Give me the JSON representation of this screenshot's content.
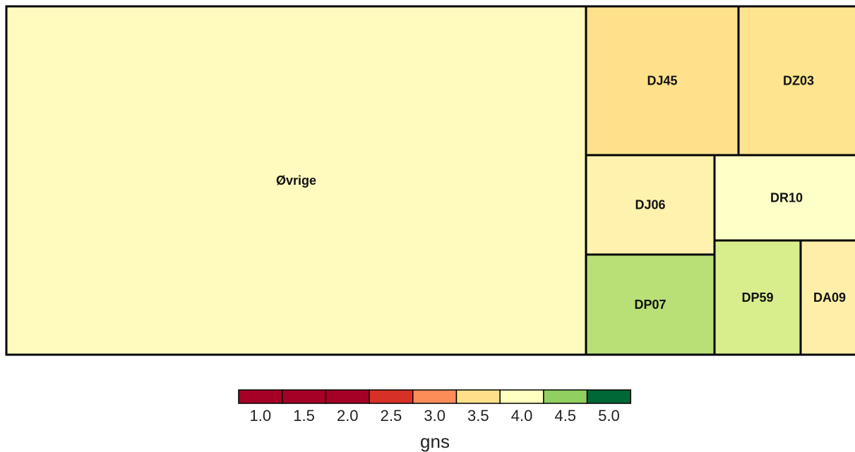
{
  "chart_data": {
    "type": "treemap",
    "title": "",
    "tiles": [
      {
        "label": "Øvrige",
        "color": "#FFFBBE"
      },
      {
        "label": "DJ45",
        "color": "#FEE18A"
      },
      {
        "label": "DZ03",
        "color": "#FEE48E"
      },
      {
        "label": "DJ06",
        "color": "#FFF2AE"
      },
      {
        "label": "DR10",
        "color": "#FFFFC8"
      },
      {
        "label": "DP07",
        "color": "#B9E076"
      },
      {
        "label": "DP59",
        "color": "#D8EE8C"
      },
      {
        "label": "DA09",
        "color": "#FFEEA8"
      }
    ],
    "legend": {
      "title": "gns",
      "ticks": [
        "1.0",
        "1.5",
        "2.0",
        "2.5",
        "3.0",
        "3.5",
        "4.0",
        "4.5",
        "5.0"
      ],
      "colors": [
        "#A50026",
        "#A50026",
        "#A50026",
        "#D73027",
        "#FC8D59",
        "#FEE08B",
        "#FFFFBF",
        "#91CF60",
        "#006837"
      ],
      "placement": "bottom"
    }
  }
}
